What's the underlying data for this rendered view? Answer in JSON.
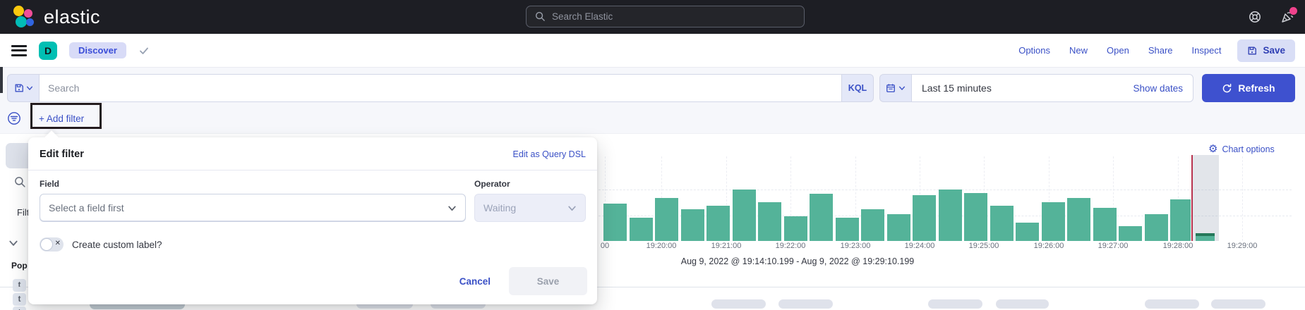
{
  "topbar": {
    "brand": "elastic",
    "search_placeholder": "Search Elastic"
  },
  "nav": {
    "space_badge": "D",
    "breadcrumb": "Discover",
    "links": [
      "Options",
      "New",
      "Open",
      "Share",
      "Inspect"
    ],
    "save_label": "Save"
  },
  "querybar": {
    "search_placeholder": "Search",
    "kql_label": "KQL",
    "time_range": "Last 15 minutes",
    "show_dates_label": "Show dates",
    "refresh_label": "Refresh"
  },
  "filterbar": {
    "add_filter_label": "+ Add filter"
  },
  "sidebar": {
    "filter_by_type_fragment": "Filt",
    "popular_fragment": "Pop",
    "field_badges": [
      "t",
      "t",
      "t"
    ]
  },
  "popup": {
    "title": "Edit filter",
    "edit_dsl_link": "Edit as Query DSL",
    "field_label": "Field",
    "field_placeholder": "Select a field first",
    "operator_label": "Operator",
    "operator_placeholder": "Waiting",
    "toggle_label": "Create custom label?",
    "cancel_label": "Cancel",
    "save_label": "Save"
  },
  "chart": {
    "options_label": "Chart options"
  },
  "chart_data": {
    "type": "bar",
    "title": "",
    "xlabel": "",
    "ylabel": "",
    "legend": "none",
    "grid": "dashed",
    "x_tick_labels": [
      "00",
      "19:20:00",
      "19:21:00",
      "19:22:00",
      "19:23:00",
      "19:24:00",
      "19:25:00",
      "19:26:00",
      "19:27:00",
      "19:28:00",
      "19:29:00"
    ],
    "x_tick_interval": "1 minute",
    "values": [
      53,
      33,
      61,
      45,
      50,
      73,
      55,
      35,
      67,
      33,
      45,
      38,
      65,
      73,
      68,
      50,
      26,
      55,
      61,
      47,
      21,
      38,
      59
    ],
    "value_scale": "relative bar heights, y-axis not labeled in view",
    "partial_bucket_value": 11,
    "time_range_caption": "Aug 9, 2022 @ 19:14:10.199 - Aug 9, 2022 @ 19:29:10.199",
    "bar_color": "#54b399",
    "partial_bucket_cap_color": "#25795a",
    "partial_bucket_shade_color": "#98a2b3",
    "current_time_marker_color": "#b9344f"
  },
  "colors": {
    "topbar_bg": "#1d1e24",
    "accent_link": "#3a50c6",
    "accent_fill": "#3e51cf",
    "accent_light_bg": "#e4e8f8",
    "space_badge_bg": "#00bfb3",
    "notification_dot": "#f0428c",
    "annotation_border": "#241b1e"
  }
}
